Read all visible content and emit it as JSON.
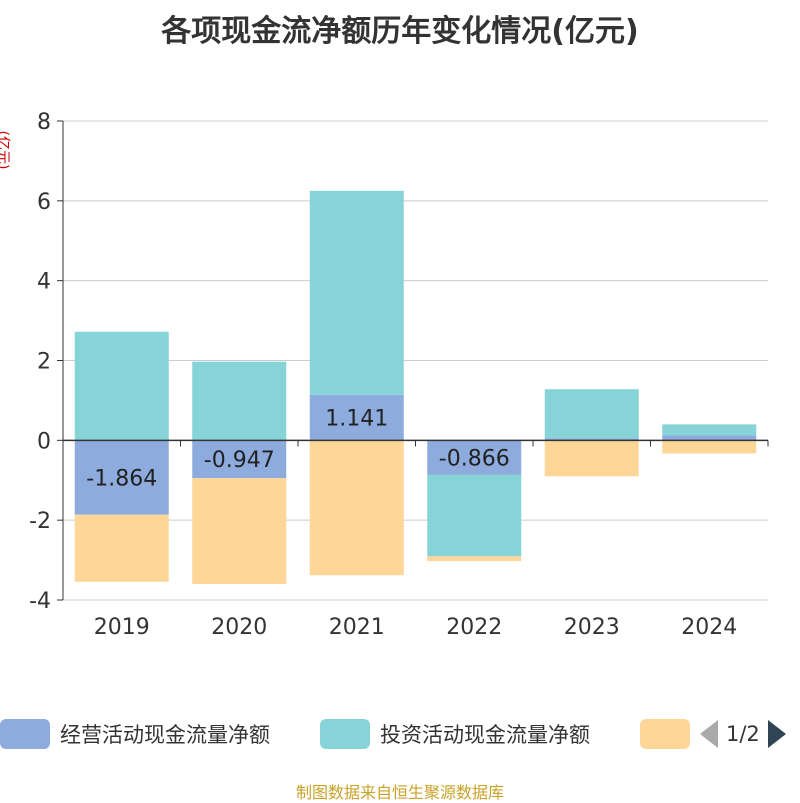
{
  "title": "各项现金流净额历年变化情况(亿元)",
  "y_unit": "(亿元)",
  "source": "制图数据来自恒生聚源数据库",
  "pager": {
    "text": "1/2"
  },
  "colors": {
    "operating": "#8eabdd",
    "investing": "#86d4d8",
    "financing": "#fdd698",
    "axis": "#333333",
    "grid": "#cccccc"
  },
  "chart_data": {
    "type": "bar",
    "stacked": true,
    "categories": [
      "2019",
      "2020",
      "2021",
      "2022",
      "2023",
      "2024"
    ],
    "ylim": [
      -4,
      8
    ],
    "yticks": [
      -4,
      -2,
      0,
      2,
      4,
      6,
      8
    ],
    "series": [
      {
        "name": "经营活动现金流量净额",
        "key": "operating",
        "values": [
          -1.864,
          -0.947,
          1.141,
          -0.866,
          0.05,
          0.12
        ],
        "labels": [
          "-1.864",
          "-0.947",
          "1.141",
          "-0.866",
          "",
          ""
        ]
      },
      {
        "name": "投资活动现金流量净额",
        "key": "investing",
        "values": [
          2.72,
          1.97,
          5.11,
          -2.04,
          1.23,
          0.28
        ],
        "labels": [
          "",
          "",
          "",
          "",
          "",
          ""
        ]
      },
      {
        "name": "",
        "key": "financing",
        "values": [
          -1.68,
          -2.65,
          -3.38,
          -0.12,
          -0.9,
          -0.33
        ],
        "labels": [
          "",
          "",
          "",
          "",
          "",
          ""
        ]
      }
    ]
  }
}
